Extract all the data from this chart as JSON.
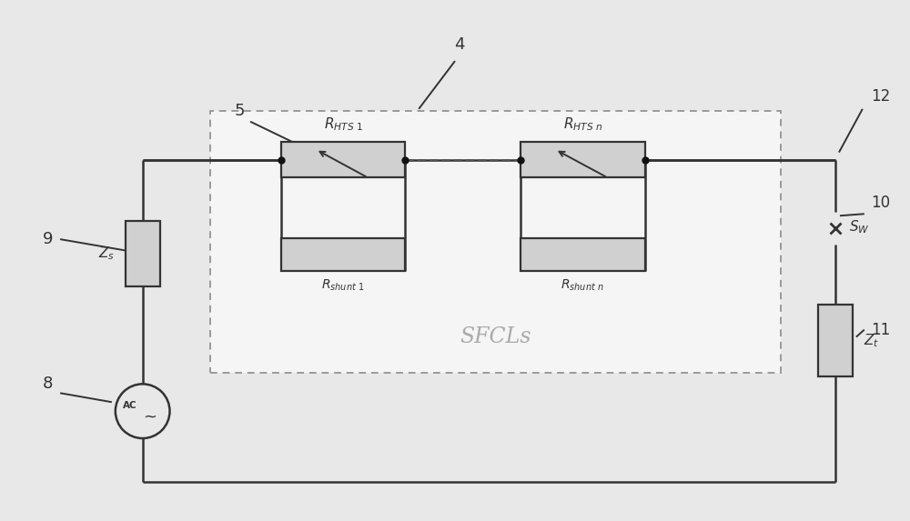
{
  "fig_bg": "#e8e8e8",
  "inner_bg": "#f5f5f5",
  "line_color": "#333333",
  "box_fill": "#d0d0d0",
  "box_edge": "#333333",
  "dot_color": "#111111",
  "dashed_box_edge": "#999999",
  "sfcl_text_color": "#aaaaaa",
  "number_color": "#333333",
  "lw": 1.8
}
